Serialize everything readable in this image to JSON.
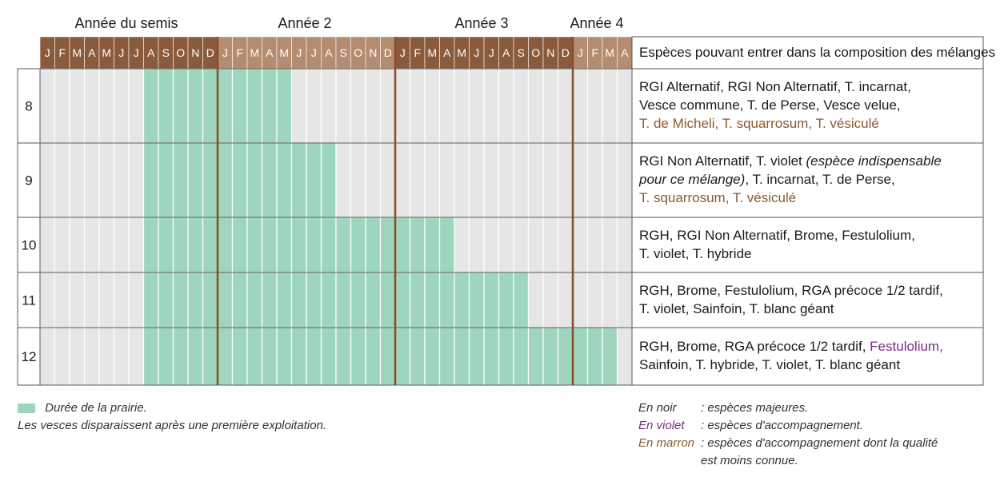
{
  "chart_data": {
    "type": "table",
    "year_labels": [
      "Année du semis",
      "Année 2",
      "Année 3",
      "Année 4"
    ],
    "months": [
      "J",
      "F",
      "M",
      "A",
      "M",
      "J",
      "J",
      "A",
      "S",
      "O",
      "N",
      "D",
      "J",
      "F",
      "M",
      "A",
      "M",
      "J",
      "J",
      "A",
      "S",
      "O",
      "N",
      "D",
      "J",
      "F",
      "M",
      "A",
      "M",
      "J",
      "J",
      "A",
      "S",
      "O",
      "N",
      "D",
      "J",
      "F",
      "M",
      "A"
    ],
    "species_header": "Espèces pouvant entrer dans la composition des mélanges",
    "rows": [
      {
        "label": "8",
        "start_month_index": 7,
        "end_month_index": 16,
        "species_lines": [
          [
            {
              "text": "RGI Alternatif, RGI Non Alternatif, T. incarnat,",
              "color": "black"
            }
          ],
          [
            {
              "text": "Vesce commune, T. de Perse, Vesce velue,",
              "color": "black"
            }
          ],
          [
            {
              "text": "T. de Micheli, T. squarrosum, T. vésiculé",
              "color": "brown"
            }
          ]
        ]
      },
      {
        "label": "9",
        "start_month_index": 7,
        "end_month_index": 19,
        "species_lines": [
          [
            {
              "text": "RGI Non Alternatif, T. violet ",
              "color": "black"
            },
            {
              "text": "(espèce indispensable",
              "color": "black",
              "italic": true
            }
          ],
          [
            {
              "text": "pour ce mélange)",
              "color": "black",
              "italic": true
            },
            {
              "text": ", T. incarnat, T. de Perse,",
              "color": "black"
            }
          ],
          [
            {
              "text": "T. squarrosum, T. vésiculé",
              "color": "brown"
            }
          ]
        ]
      },
      {
        "label": "10",
        "start_month_index": 7,
        "end_month_index": 27,
        "species_lines": [
          [
            {
              "text": "RGH, RGI Non Alternatif, Brome, Festulolium,",
              "color": "black"
            }
          ],
          [
            {
              "text": "T. violet, T. hybride",
              "color": "black"
            }
          ]
        ]
      },
      {
        "label": "11",
        "start_month_index": 7,
        "end_month_index": 32,
        "species_lines": [
          [
            {
              "text": "RGH, Brome, Festulolium, RGA précoce 1/2 tardif,",
              "color": "black"
            }
          ],
          [
            {
              "text": "T. violet, Sainfoin, T. blanc géant",
              "color": "black"
            }
          ]
        ]
      },
      {
        "label": "12",
        "start_month_index": 7,
        "end_month_index": 38,
        "species_lines": [
          [
            {
              "text": "RGH, Brome, RGA précoce 1/2 tardif, ",
              "color": "black"
            },
            {
              "text": "Festulolium,",
              "color": "violet"
            }
          ],
          [
            {
              "text": "Sainfoin, T. hybride, T. violet, T. blanc géant",
              "color": "black"
            }
          ]
        ]
      }
    ],
    "legend": {
      "duration_label": "Durée de la prairie.",
      "note": "Les vesces disparaissent après une première exploitation.",
      "color_keys": [
        {
          "key": "En noir",
          "value": ": espèces majeures.",
          "color": "black"
        },
        {
          "key": "En violet",
          "value": ": espèces d'accompagnement.",
          "color": "violet"
        },
        {
          "key": "En marron",
          "value": ": espèces d'accompagnement dont la qualité",
          "value2": "est moins connue.",
          "color": "brown"
        }
      ]
    }
  },
  "colors": {
    "header_dark": "#8a5a3c",
    "header_light": "#b48c70",
    "cell_grey": "#e6e6e6",
    "cell_green": "#9ed6bd",
    "year_divider": "#8a4b2a",
    "grid_line": "#555555",
    "text_violet": "#7a2a8a",
    "text_brown": "#8a5a2e"
  }
}
